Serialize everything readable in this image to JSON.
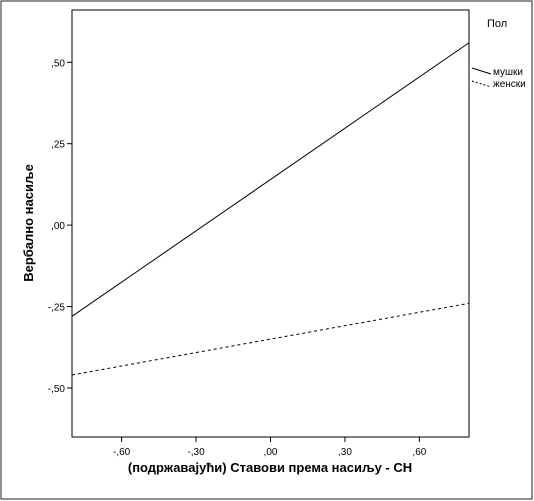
{
  "chart_data": {
    "type": "line",
    "xlabel": "(подржавајући) Ставови према насиљу - СН",
    "ylabel": "Вербално насиље",
    "xlim": [
      -0.8,
      0.8
    ],
    "ylim": [
      -0.6505,
      0.6605
    ],
    "x_ticks": [
      -0.6,
      -0.3,
      0.0,
      0.3,
      0.6
    ],
    "x_tick_labels": [
      "-,60",
      "-,30",
      ",00",
      ",30",
      ",60"
    ],
    "y_ticks": [
      0.5,
      0.25,
      0.0,
      -0.25,
      -0.5
    ],
    "y_tick_labels": [
      ",50",
      ",25",
      ",00",
      "-,25",
      "-,50"
    ],
    "grid": false,
    "legend": {
      "title": "Пол",
      "position": "right",
      "entries": [
        {
          "name": "мушки",
          "style": "solid"
        },
        {
          "name": "женски",
          "style": "dashed"
        }
      ]
    },
    "series": [
      {
        "name": "мушки",
        "style": "solid",
        "x": [
          -0.8,
          0.8
        ],
        "y": [
          -0.28,
          0.56
        ]
      },
      {
        "name": "женски",
        "style": "dashed",
        "x": [
          -0.8,
          0.8
        ],
        "y": [
          -0.46,
          -0.24
        ]
      }
    ],
    "colors": {
      "line": "#000000",
      "frame": "#000000",
      "background": "#ffffff"
    }
  }
}
